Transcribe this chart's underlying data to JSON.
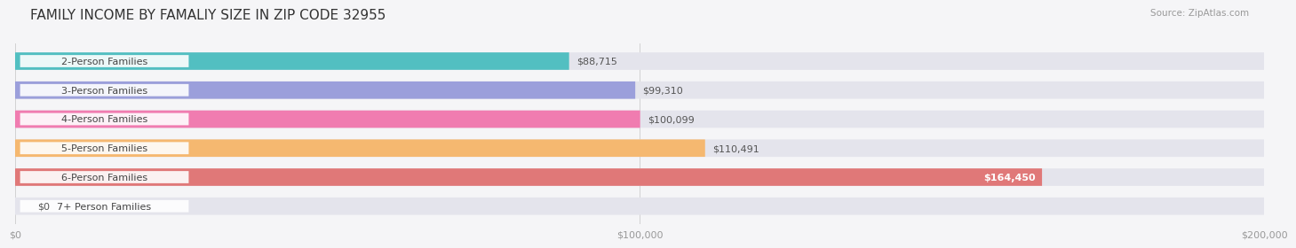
{
  "title": "FAMILY INCOME BY FAMALIY SIZE IN ZIP CODE 32955",
  "source": "Source: ZipAtlas.com",
  "categories": [
    "2-Person Families",
    "3-Person Families",
    "4-Person Families",
    "5-Person Families",
    "6-Person Families",
    "7+ Person Families"
  ],
  "values": [
    88715,
    99310,
    100099,
    110491,
    164450,
    0
  ],
  "bar_colors": [
    "#52bfc1",
    "#9b9fdb",
    "#f07cb0",
    "#f5b870",
    "#e07878",
    "#a8c4e0"
  ],
  "value_labels": [
    "$88,715",
    "$99,310",
    "$100,099",
    "$110,491",
    "$164,450",
    "$0"
  ],
  "label_inside": [
    false,
    false,
    false,
    false,
    true,
    false
  ],
  "x_max": 200000,
  "x_tick_labels": [
    "$0",
    "$100,000",
    "$200,000"
  ],
  "bg_color": "#f5f5f7",
  "bar_bg_color": "#e4e4ec",
  "title_fontsize": 11,
  "label_fontsize": 8,
  "value_fontsize": 8,
  "tick_fontsize": 8
}
